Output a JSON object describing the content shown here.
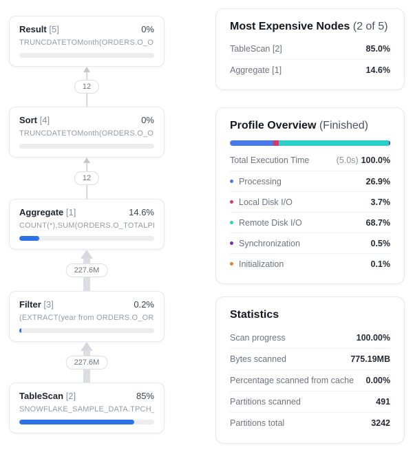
{
  "colors": {
    "progress_blue": "#2e72e4",
    "processing": "#4b79e8",
    "local_disk_io": "#df3568",
    "remote_disk_io": "#2bcfc8",
    "synchronization": "#7430a8",
    "initialization": "#dd8435"
  },
  "diagram": {
    "nodes": [
      {
        "name": "Result",
        "id": "[5]",
        "pct": "0%",
        "subtitle": "TRUNCDATETOMonth(ORDERS.O_ORDE...",
        "fill": 0
      },
      {
        "name": "Sort",
        "id": "[4]",
        "pct": "0%",
        "subtitle": "TRUNCDATETOMonth(ORDERS.O_ORDE...",
        "fill": 0
      },
      {
        "name": "Aggregate",
        "id": "[1]",
        "pct": "14.6%",
        "subtitle": "COUNT(*),SUM(ORDERS.O_TOTALPRICE)",
        "fill": 14.6
      },
      {
        "name": "Filter",
        "id": "[3]",
        "pct": "0.2%",
        "subtitle": "(EXTRACT(year from ORDERS.O_ORDER...",
        "fill": 0.2
      },
      {
        "name": "TableScan",
        "id": "[2]",
        "pct": "85%",
        "subtitle": "SNOWFLAKE_SAMPLE_DATA.TPCH_SF1...",
        "fill": 85
      }
    ],
    "edges": [
      {
        "label": "12"
      },
      {
        "label": "12"
      },
      {
        "label": "227.6M"
      },
      {
        "label": "227.6M"
      }
    ]
  },
  "most_expensive": {
    "title": "Most Expensive Nodes",
    "subtitle": "(2 of 5)",
    "rows": [
      {
        "label": "TableScan [2]",
        "value": "85.0%"
      },
      {
        "label": "Aggregate [1]",
        "value": "14.6%"
      }
    ]
  },
  "profile_overview": {
    "title": "Profile Overview",
    "subtitle": "(Finished)",
    "total_label": "Total Execution Time",
    "total_time": "(5.0s)",
    "total_pct": "100.0%",
    "rows": [
      {
        "label": "Processing",
        "value": "26.9%",
        "pct_num": 26.9,
        "color": "#4b79e8"
      },
      {
        "label": "Local Disk I/O",
        "value": "3.7%",
        "pct_num": 3.7,
        "color": "#df3568"
      },
      {
        "label": "Remote Disk I/O",
        "value": "68.7%",
        "pct_num": 68.7,
        "color": "#2bcfc8"
      },
      {
        "label": "Synchronization",
        "value": "0.5%",
        "pct_num": 0.5,
        "color": "#7430a8"
      },
      {
        "label": "Initialization",
        "value": "0.1%",
        "pct_num": 0.1,
        "color": "#dd8435"
      }
    ]
  },
  "statistics": {
    "title": "Statistics",
    "rows": [
      {
        "label": "Scan progress",
        "value": "100.00%"
      },
      {
        "label": "Bytes scanned",
        "value": "775.19MB"
      },
      {
        "label": "Percentage scanned from cache",
        "value": "0.00%"
      },
      {
        "label": "Partitions scanned",
        "value": "491"
      },
      {
        "label": "Partitions total",
        "value": "3242"
      }
    ]
  }
}
